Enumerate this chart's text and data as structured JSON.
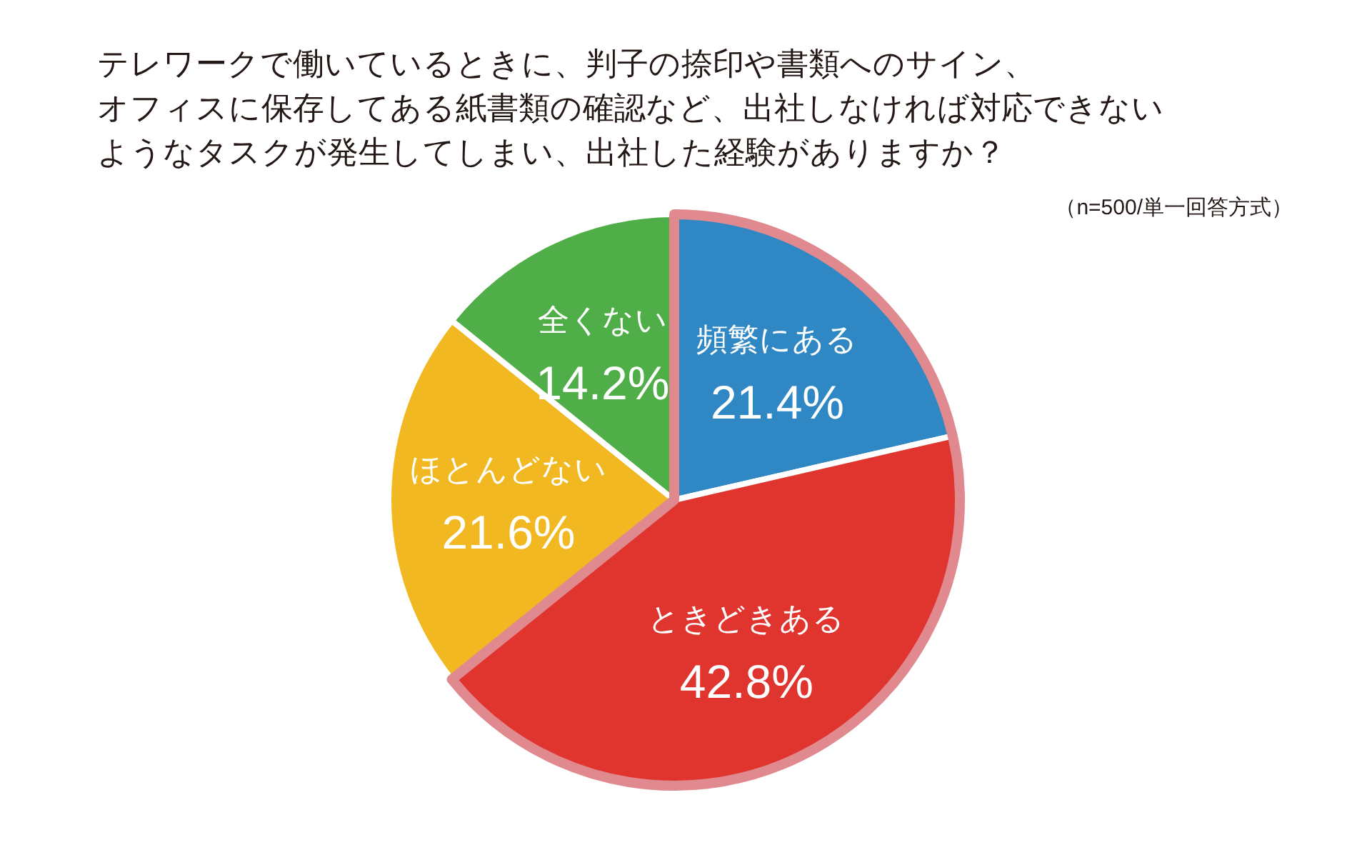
{
  "chart_data": {
    "type": "pie",
    "title": "テレワークで働いているときに、判子の捺印や書類へのサイン、オフィスに保存してある紙書類の確認など、出社しなければ対応できないようなタスクが発生してしまい、出社した経験がありますか？",
    "subtitle": "（n=500/単一回答方式）",
    "categories": [
      "頻繁にある",
      "ときどきある",
      "ほとんどない",
      "全くない"
    ],
    "values": [
      21.4,
      42.8,
      21.6,
      14.2
    ],
    "value_labels": [
      "21.4%",
      "42.8%",
      "21.6%",
      "14.2%"
    ],
    "colors": [
      "#2f88c4",
      "#e0352f",
      "#f2b822",
      "#50ae48"
    ]
  }
}
